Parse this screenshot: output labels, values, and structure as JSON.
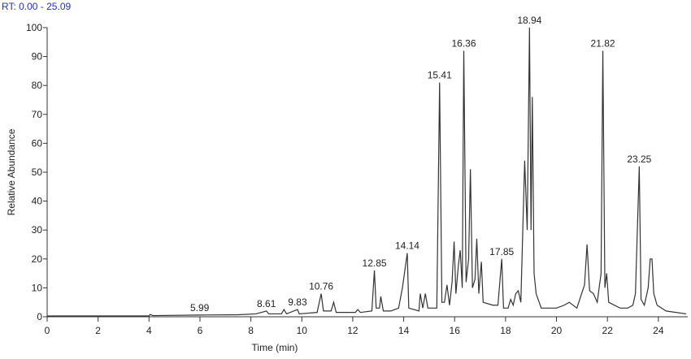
{
  "chart_data": {
    "type": "line",
    "title": "RT: 0.00 - 25.09",
    "x_label": "Time (min)",
    "y_label": "Relative Abundance",
    "xlim": [
      0,
      25.09
    ],
    "ylim": [
      0,
      100
    ],
    "xticks": [
      0,
      2,
      4,
      6,
      8,
      10,
      12,
      14,
      16,
      18,
      20,
      22,
      24
    ],
    "yticks": [
      0,
      10,
      20,
      30,
      40,
      50,
      60,
      70,
      80,
      90,
      100
    ],
    "series": [
      {
        "color": "#333333",
        "x": [
          0,
          4.0,
          4.05,
          4.15,
          5.99,
          7.5,
          8.2,
          8.61,
          8.7,
          9.2,
          9.3,
          9.4,
          9.83,
          9.9,
          10.6,
          10.76,
          10.85,
          11.15,
          11.25,
          11.35,
          12.1,
          12.2,
          12.3,
          12.75,
          12.85,
          12.92,
          13.05,
          13.1,
          13.2,
          13.5,
          13.8,
          13.95,
          14.14,
          14.2,
          14.6,
          14.65,
          14.75,
          14.85,
          14.95,
          15.3,
          15.41,
          15.5,
          15.6,
          15.7,
          15.8,
          15.9,
          15.98,
          16.05,
          16.15,
          16.22,
          16.3,
          16.36,
          16.45,
          16.55,
          16.62,
          16.7,
          16.8,
          16.87,
          16.95,
          17.05,
          17.12,
          17.5,
          17.7,
          17.85,
          17.92,
          18.1,
          18.2,
          18.3,
          18.4,
          18.5,
          18.6,
          18.75,
          18.85,
          18.94,
          19.0,
          19.05,
          19.12,
          19.2,
          19.4,
          19.7,
          20.0,
          20.3,
          20.5,
          20.8,
          21.1,
          21.2,
          21.3,
          21.45,
          21.6,
          21.75,
          21.82,
          21.9,
          21.97,
          22.05,
          22.5,
          22.8,
          23.0,
          23.1,
          23.25,
          23.32,
          23.45,
          23.6,
          23.68,
          23.75,
          23.82,
          23.95,
          24.3,
          25.09
        ],
        "values": [
          0.3,
          0.3,
          0.8,
          0.4,
          0.6,
          0.7,
          1,
          2,
          1,
          1,
          2.5,
          1,
          2.5,
          1,
          1.5,
          8,
          2,
          2,
          5,
          1.5,
          1.5,
          2.5,
          1.5,
          2,
          16,
          3,
          3,
          7,
          2,
          2,
          3,
          10,
          22,
          3,
          2,
          8,
          3,
          8,
          3,
          3,
          81,
          5,
          5,
          11,
          4,
          12,
          26,
          8,
          18,
          23,
          10,
          92,
          12,
          20,
          51,
          10,
          13,
          27,
          8,
          19,
          5,
          4,
          4,
          20,
          3,
          3,
          6,
          4,
          8,
          9,
          5,
          54,
          30,
          100,
          30,
          76,
          15,
          8,
          3,
          3,
          3,
          4,
          5,
          3,
          11,
          25,
          9,
          8,
          5,
          15,
          92,
          10,
          15,
          5,
          3,
          3,
          4,
          8,
          52,
          6,
          4,
          10,
          20,
          20,
          8,
          4,
          2,
          1
        ]
      }
    ],
    "peaks": {
      "rt": [
        5.99,
        8.61,
        9.83,
        10.76,
        12.85,
        14.14,
        15.41,
        16.36,
        17.85,
        18.94,
        21.82,
        23.25
      ],
      "abundance": [
        0.6,
        2,
        2.5,
        8,
        16,
        22,
        81,
        92,
        20,
        100,
        92,
        52
      ]
    }
  }
}
